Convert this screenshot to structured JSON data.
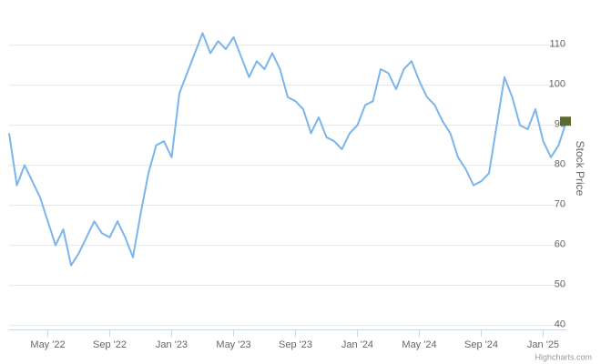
{
  "chart_data": {
    "type": "line",
    "y_axis_title": "Stock Price",
    "credit": "Highcharts.com",
    "categories": [
      null,
      null,
      null,
      null,
      null,
      "May '22",
      null,
      null,
      null,
      null,
      null,
      null,
      null,
      "Sep '22",
      null,
      null,
      null,
      null,
      null,
      null,
      null,
      "Jan '23",
      null,
      null,
      null,
      null,
      null,
      null,
      null,
      "May '23",
      null,
      null,
      null,
      null,
      null,
      null,
      null,
      "Sep '23",
      null,
      null,
      null,
      null,
      null,
      null,
      null,
      "Jan '24",
      null,
      null,
      null,
      null,
      null,
      null,
      null,
      "May '24",
      null,
      null,
      null,
      null,
      null,
      null,
      null,
      "Sep '24",
      null,
      null,
      null,
      null,
      null,
      null,
      null,
      "Jan '25",
      null,
      null,
      null
    ],
    "series": [
      {
        "name": "Stock Price",
        "color": "#7cb5ec",
        "values": [
          88,
          75,
          80,
          76,
          72,
          66,
          60,
          64,
          55,
          58,
          62,
          66,
          63,
          62,
          66,
          62,
          57,
          68,
          78,
          85,
          86,
          82,
          98,
          103,
          108,
          113,
          108,
          111,
          109,
          112,
          107,
          102,
          106,
          104,
          108,
          104,
          97,
          96,
          94,
          88,
          92,
          87,
          86,
          84,
          88,
          90,
          95,
          96,
          104,
          103,
          99,
          104,
          106,
          101,
          97,
          95,
          91,
          88,
          82,
          79,
          75,
          76,
          78,
          90,
          102,
          97,
          90,
          89,
          94,
          86,
          82,
          85,
          91
        ]
      }
    ],
    "last_value_color": "#5a6b2f",
    "ylim": [
      39,
      119
    ],
    "yticks": [
      40,
      50,
      60,
      70,
      80,
      90,
      100,
      110
    ],
    "grid": true
  }
}
